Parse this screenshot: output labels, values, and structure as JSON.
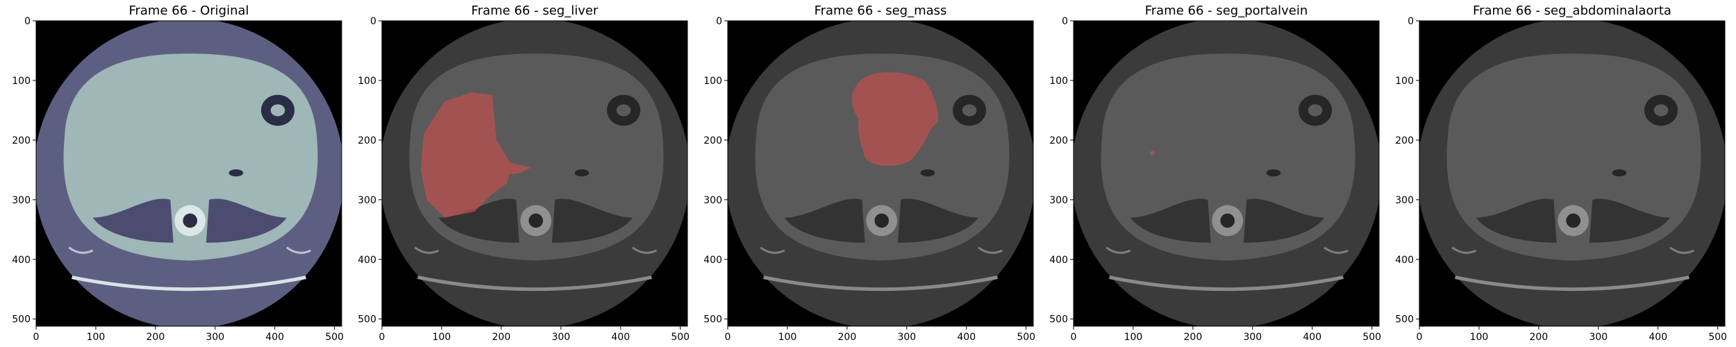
{
  "figure": {
    "panels": [
      {
        "title": "Frame 66 - Original",
        "mask": "none",
        "tint": "original"
      },
      {
        "title": "Frame 66 - seg_liver",
        "mask": "liver",
        "tint": "gray"
      },
      {
        "title": "Frame 66 - seg_mass",
        "mask": "mass",
        "tint": "gray"
      },
      {
        "title": "Frame 66 - seg_portalvein",
        "mask": "portalvein",
        "tint": "gray"
      },
      {
        "title": "Frame 66 - seg_abdominalaorta",
        "mask": "none",
        "tint": "gray"
      }
    ],
    "x_ticks": [
      "0",
      "100",
      "200",
      "300",
      "400",
      "500"
    ],
    "y_ticks": [
      "0",
      "100",
      "200",
      "300",
      "400",
      "500"
    ],
    "image_extent": [
      0,
      512
    ],
    "colors": {
      "original_body": "#9fb7b7",
      "original_rim": "#5d5f82",
      "gray_body": "#5a5a5a",
      "gray_rim": "#3b3b3b",
      "mask": "#c0504d"
    }
  }
}
